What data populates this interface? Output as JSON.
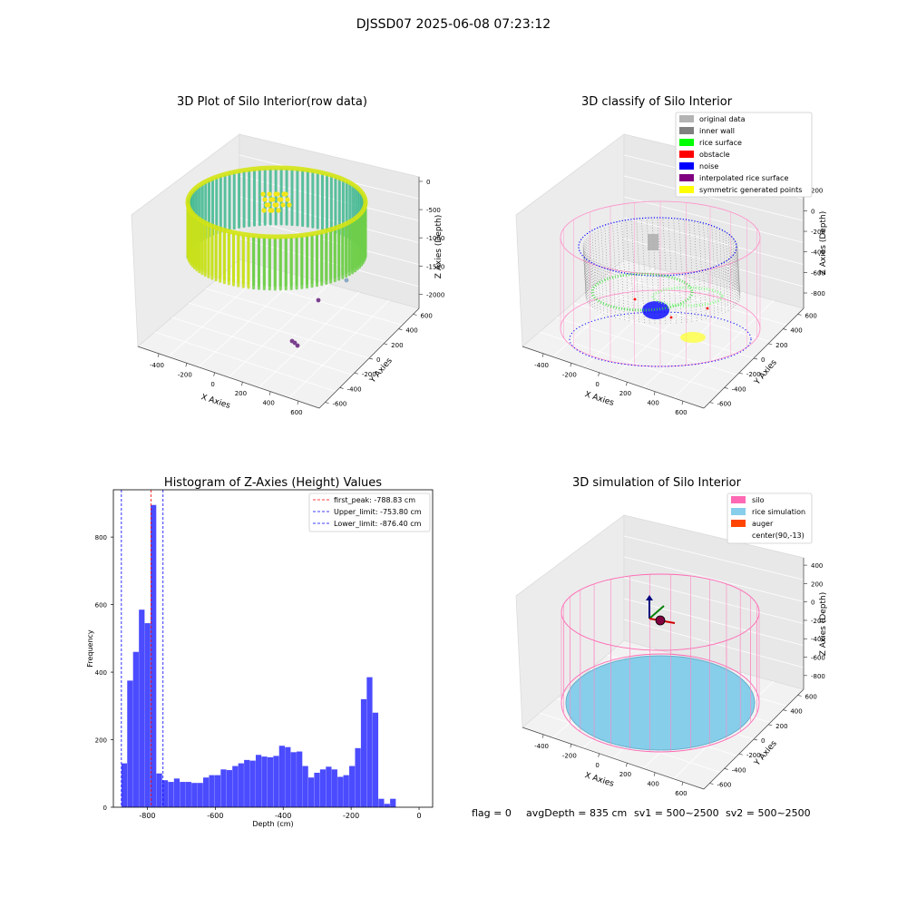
{
  "suptitle": "DJSSD07 2025-06-08 07:23:12",
  "footer": {
    "flag": "flag = 0",
    "avg_depth": "avgDepth = 835 cm",
    "sv1": "sv1 = 500~2500",
    "sv2": "sv2 = 500~2500"
  },
  "chart_data": [
    {
      "type": "scatter",
      "title": "3D Plot of Silo Interior(row data)",
      "xlabel": "X Axies",
      "ylabel": "Y Axies",
      "zlabel": "Z Axies (Depth)",
      "x_ticks": [
        -400,
        -200,
        0,
        200,
        400,
        600
      ],
      "y_ticks": [
        -600,
        -400,
        -200,
        0,
        200,
        400,
        600
      ],
      "z_ticks": [
        -2000,
        -1500,
        -1000,
        -500,
        0
      ],
      "grid": true
    },
    {
      "type": "scatter",
      "title": "3D classify of Silo Interior",
      "xlabel": "X Axies",
      "ylabel": "Y Axies",
      "zlabel": "Z Axies (Depth)",
      "x_ticks": [
        -400,
        -200,
        0,
        200,
        400,
        600
      ],
      "y_ticks": [
        -600,
        -400,
        -200,
        0,
        200,
        400,
        600
      ],
      "z_ticks": [
        -800,
        -600,
        -400,
        -200,
        0,
        200
      ],
      "legend_position": "top-right",
      "legend": [
        {
          "label": "original data",
          "color": "#b3b3b3"
        },
        {
          "label": "inner wall",
          "color": "#808080"
        },
        {
          "label": "rice surface",
          "color": "#00ff00"
        },
        {
          "label": "obstacle",
          "color": "#ff0000"
        },
        {
          "label": "noise",
          "color": "#0000ff"
        },
        {
          "label": "interpolated rice surface",
          "color": "#800080"
        },
        {
          "label": "symmetric generated points",
          "color": "#ffff00"
        }
      ],
      "grid": true
    },
    {
      "type": "bar",
      "title": "Histogram of Z-Axies (Height) Values",
      "xlabel": "Depth (cm)",
      "ylabel": "Frequency",
      "xlim": [
        -900,
        40
      ],
      "ylim": [
        0,
        940
      ],
      "x_ticks": [
        -800,
        -600,
        -400,
        -200,
        0
      ],
      "y_ticks": [
        0,
        200,
        400,
        600,
        800
      ],
      "bin_width": 17.2,
      "bin_start": -876.4,
      "values": [
        130,
        375,
        460,
        585,
        545,
        895,
        100,
        80,
        75,
        85,
        75,
        75,
        72,
        72,
        88,
        95,
        95,
        112,
        110,
        122,
        130,
        140,
        138,
        155,
        150,
        148,
        152,
        182,
        178,
        163,
        165,
        122,
        88,
        102,
        112,
        120,
        112,
        90,
        95,
        122,
        175,
        320,
        385,
        280,
        25,
        10,
        25
      ],
      "bar_color": "#4b4bff",
      "vlines": [
        {
          "x": -788.83,
          "color": "#ff0000",
          "label": "first_peak: -788.83 cm"
        },
        {
          "x": -753.8,
          "color": "#0000ff",
          "label": "Upper_limit: -753.80 cm"
        },
        {
          "x": -876.4,
          "color": "#0000ff",
          "label": "Lower_limit: -876.40 cm"
        }
      ],
      "legend_position": "top-right"
    },
    {
      "type": "scatter",
      "title": "3D simulation of Silo Interior",
      "xlabel": "X Axies",
      "ylabel": "Y Axies",
      "zlabel": "Z Axies (Depth)",
      "x_ticks": [
        -400,
        -200,
        0,
        200,
        400,
        600
      ],
      "y_ticks": [
        -600,
        -400,
        -200,
        0,
        200,
        400,
        600
      ],
      "z_ticks": [
        -800,
        -600,
        -400,
        -200,
        0,
        200,
        400
      ],
      "legend_position": "top-right",
      "legend": [
        {
          "label": "silo",
          "color": "#ff69b4"
        },
        {
          "label": "rice simulation",
          "color": "#87ceeb"
        },
        {
          "label": "auger",
          "color": "#ff4500"
        },
        {
          "label": "center(90,-13)",
          "color": "#ffffff"
        }
      ],
      "grid": true
    }
  ]
}
